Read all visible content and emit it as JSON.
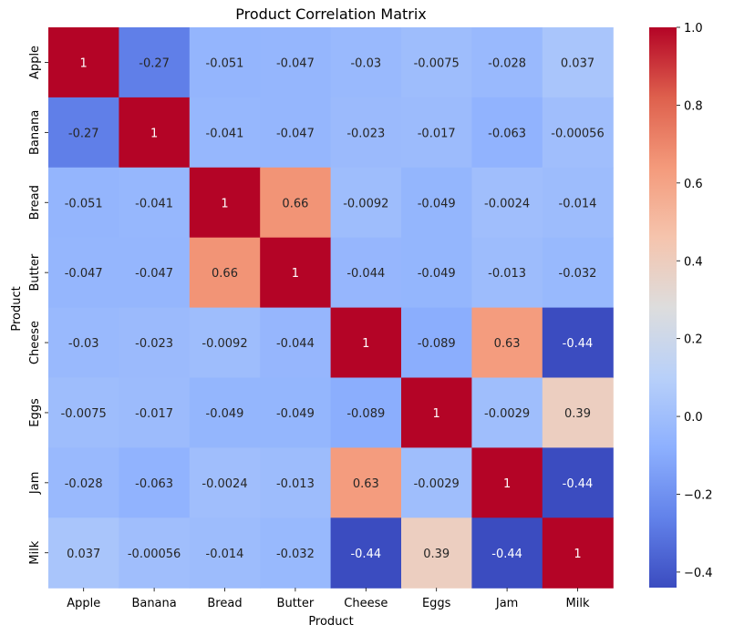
{
  "chart_data": {
    "type": "heatmap",
    "title": "Product Correlation Matrix",
    "xlabel": "Product",
    "ylabel": "Product",
    "x_categories": [
      "Apple",
      "Banana",
      "Bread",
      "Butter",
      "Cheese",
      "Eggs",
      "Jam",
      "Milk"
    ],
    "y_categories": [
      "Apple",
      "Banana",
      "Bread",
      "Butter",
      "Cheese",
      "Eggs",
      "Jam",
      "Milk"
    ],
    "values": [
      [
        1,
        -0.27,
        -0.051,
        -0.047,
        -0.03,
        -0.0075,
        -0.028,
        0.037
      ],
      [
        -0.27,
        1,
        -0.041,
        -0.047,
        -0.023,
        -0.017,
        -0.063,
        -0.00056
      ],
      [
        -0.051,
        -0.041,
        1,
        0.66,
        -0.0092,
        -0.049,
        -0.0024,
        -0.014
      ],
      [
        -0.047,
        -0.047,
        0.66,
        1,
        -0.044,
        -0.049,
        -0.013,
        -0.032
      ],
      [
        -0.03,
        -0.023,
        -0.0092,
        -0.044,
        1,
        -0.089,
        0.63,
        -0.44
      ],
      [
        -0.0075,
        -0.017,
        -0.049,
        -0.049,
        -0.089,
        1,
        -0.0029,
        0.39
      ],
      [
        -0.028,
        -0.063,
        -0.0024,
        -0.013,
        0.63,
        -0.0029,
        1,
        -0.44
      ],
      [
        0.037,
        -0.00056,
        -0.014,
        -0.032,
        -0.44,
        0.39,
        -0.44,
        1
      ]
    ],
    "labels": [
      [
        "1",
        "-0.27",
        "-0.051",
        "-0.047",
        "-0.03",
        "-0.0075",
        "-0.028",
        "0.037"
      ],
      [
        "-0.27",
        "1",
        "-0.041",
        "-0.047",
        "-0.023",
        "-0.017",
        "-0.063",
        "-0.00056"
      ],
      [
        "-0.051",
        "-0.041",
        "1",
        "0.66",
        "-0.0092",
        "-0.049",
        "-0.0024",
        "-0.014"
      ],
      [
        "-0.047",
        "-0.047",
        "0.66",
        "1",
        "-0.044",
        "-0.049",
        "-0.013",
        "-0.032"
      ],
      [
        "-0.03",
        "-0.023",
        "-0.0092",
        "-0.044",
        "1",
        "-0.089",
        "0.63",
        "-0.44"
      ],
      [
        "-0.0075",
        "-0.017",
        "-0.049",
        "-0.049",
        "-0.089",
        "1",
        "-0.0029",
        "0.39"
      ],
      [
        "-0.028",
        "-0.063",
        "-0.0024",
        "-0.013",
        "0.63",
        "-0.0029",
        "1",
        "-0.44"
      ],
      [
        "0.037",
        "-0.00056",
        "-0.014",
        "-0.032",
        "-0.44",
        "0.39",
        "-0.44",
        "1"
      ]
    ],
    "colorbar": {
      "colormap": "coolwarm",
      "range": [
        -0.44,
        1.0
      ],
      "ticks": [
        "1.0",
        "0.8",
        "0.6",
        "0.4",
        "0.2",
        "0.0",
        "−0.2",
        "−0.4"
      ],
      "tick_values": [
        1.0,
        0.8,
        0.6,
        0.4,
        0.2,
        0.0,
        -0.2,
        -0.4
      ]
    },
    "annotation_text_dark": "#262626",
    "annotation_text_light": "#ffffff"
  }
}
